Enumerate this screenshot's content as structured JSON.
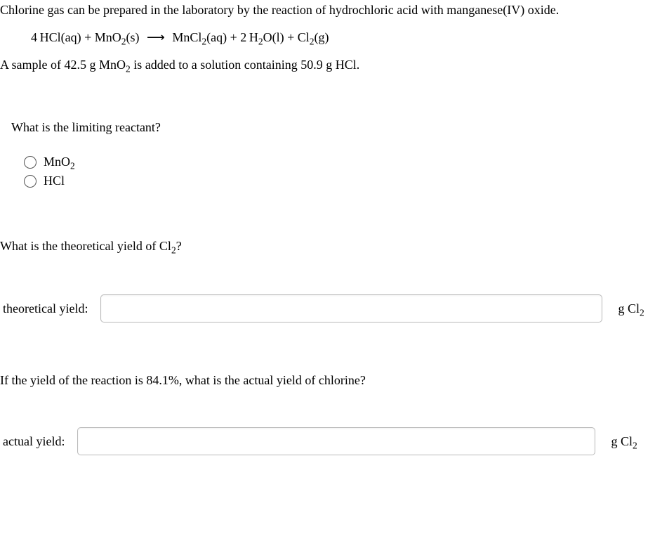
{
  "intro": {
    "line1_pre": "Chlorine gas can be prepared in the laboratory by the reaction of hydrochloric acid with manganese(IV) oxide.",
    "eq_lhs_coef1": "4",
    "eq_lhs1": "HCl(aq)",
    "eq_plus1": " + ",
    "eq_lhs2_a": "MnO",
    "eq_lhs2_sub": "2",
    "eq_lhs2_b": "(s)",
    "eq_arrow": "⟶",
    "eq_rhs1_a": "MnCl",
    "eq_rhs1_sub": "2",
    "eq_rhs1_b": "(aq)",
    "eq_plus2": " + 2",
    "eq_rhs2_a": "H",
    "eq_rhs2_sub": "2",
    "eq_rhs2_b": "O(l)",
    "eq_plus3": " + ",
    "eq_rhs3_a": "Cl",
    "eq_rhs3_sub": "2",
    "eq_rhs3_b": "(g)",
    "line2_a": "A sample of 42.5 g MnO",
    "line2_sub": "2",
    "line2_b": " is added to a solution containing 50.9 g HCl."
  },
  "q1": {
    "text": "What is the limiting reactant?",
    "opt1_a": "MnO",
    "opt1_sub": "2",
    "opt2": "HCl"
  },
  "q2": {
    "text_a": "What is the theoretical yield of Cl",
    "text_sub": "2",
    "text_b": "?",
    "label": "theoretical yield:",
    "unit_a": "g Cl",
    "unit_sub": "2",
    "input_width": 713
  },
  "q3": {
    "text": "If the yield of the reaction is 84.1%, what is the actual yield of chlorine?",
    "label": "actual yield:",
    "unit_a": "g Cl",
    "unit_sub": "2",
    "input_width": 736
  }
}
